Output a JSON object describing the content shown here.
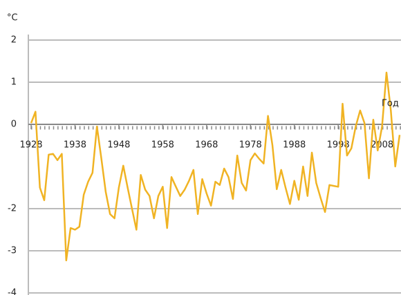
{
  "chart_data": {
    "type": "line",
    "y_label": "°C",
    "x_label": "Год",
    "x": [
      1928,
      1929,
      1930,
      1931,
      1932,
      1933,
      1934,
      1935,
      1936,
      1937,
      1938,
      1939,
      1940,
      1941,
      1942,
      1943,
      1944,
      1945,
      1946,
      1947,
      1948,
      1949,
      1950,
      1951,
      1952,
      1953,
      1954,
      1955,
      1956,
      1957,
      1958,
      1959,
      1960,
      1961,
      1962,
      1963,
      1964,
      1965,
      1966,
      1967,
      1968,
      1969,
      1970,
      1971,
      1972,
      1973,
      1974,
      1975,
      1976,
      1977,
      1978,
      1979,
      1980,
      1981,
      1982,
      1983,
      1984,
      1985,
      1986,
      1987,
      1988,
      1989,
      1990,
      1991,
      1992,
      1993,
      1994,
      1995,
      1996,
      1997,
      1998,
      1999,
      2000,
      2001,
      2002,
      2003,
      2004,
      2005,
      2006,
      2007,
      2008,
      2009,
      2010,
      2011,
      2012
    ],
    "series": [
      {
        "color": "#f0b323",
        "values": [
          0.03,
          0.3,
          -1.5,
          -1.8,
          -0.72,
          -0.7,
          -0.85,
          -0.7,
          -3.23,
          -2.46,
          -2.5,
          -2.43,
          -1.67,
          -1.36,
          -1.15,
          -0.05,
          -0.8,
          -1.6,
          -2.13,
          -2.23,
          -1.5,
          -0.98,
          -1.5,
          -2.0,
          -2.5,
          -1.2,
          -1.55,
          -1.7,
          -2.23,
          -1.7,
          -1.48,
          -2.46,
          -1.25,
          -1.48,
          -1.7,
          -1.55,
          -1.34,
          -1.08,
          -2.13,
          -1.3,
          -1.64,
          -1.93,
          -1.36,
          -1.44,
          -1.05,
          -1.25,
          -1.77,
          -0.74,
          -1.39,
          -1.57,
          -0.85,
          -0.69,
          -0.82,
          -0.93,
          0.2,
          -0.49,
          -1.54,
          -1.08,
          -1.5,
          -1.89,
          -1.34,
          -1.79,
          -1.0,
          -1.7,
          -0.67,
          -1.39,
          -1.75,
          -2.08,
          -1.44,
          -1.46,
          -1.48,
          0.49,
          -0.74,
          -0.57,
          -0.05,
          0.33,
          0.03,
          -1.28,
          0.11,
          -0.62,
          -0.05,
          1.23,
          0.33,
          -1.0,
          -0.25
        ]
      }
    ],
    "xlim": [
      1928,
      2012
    ],
    "xticks": [
      1928,
      1938,
      1948,
      1958,
      1968,
      1978,
      1988,
      1998,
      2008
    ],
    "ylim": [
      -4,
      2
    ],
    "yticks": [
      2,
      1,
      0,
      -2,
      -3,
      -4
    ],
    "grid": true
  }
}
